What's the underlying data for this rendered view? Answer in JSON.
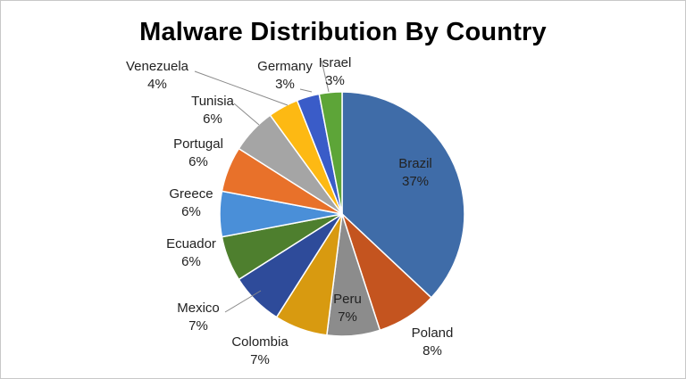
{
  "chart_data": {
    "type": "pie",
    "title": "Malware Distribution By Country",
    "slices": [
      {
        "name": "Brazil",
        "value": 37,
        "label": "37%",
        "color": "#3F6CA8"
      },
      {
        "name": "Poland",
        "value": 8,
        "label": "8%",
        "color": "#C4541F"
      },
      {
        "name": "Peru",
        "value": 7,
        "label": "7%",
        "color": "#8C8C8C"
      },
      {
        "name": "Colombia",
        "value": 7,
        "label": "7%",
        "color": "#D89A10"
      },
      {
        "name": "Mexico",
        "value": 7,
        "label": "7%",
        "color": "#2E4B9A"
      },
      {
        "name": "Ecuador",
        "value": 6,
        "label": "6%",
        "color": "#4E7F2E"
      },
      {
        "name": "Greece",
        "value": 6,
        "label": "6%",
        "color": "#4A8FD8"
      },
      {
        "name": "Portugal",
        "value": 6,
        "label": "6%",
        "color": "#E8712A"
      },
      {
        "name": "Tunisia",
        "value": 6,
        "label": "6%",
        "color": "#A5A5A5"
      },
      {
        "name": "Venezuela",
        "value": 4,
        "label": "4%",
        "color": "#FDB913"
      },
      {
        "name": "Germany",
        "value": 3,
        "label": "3%",
        "color": "#3A5CC8"
      },
      {
        "name": "Israel",
        "value": 3,
        "label": "3%",
        "color": "#5DA538"
      }
    ],
    "legend": "none",
    "label_color_inside": "#222222"
  }
}
